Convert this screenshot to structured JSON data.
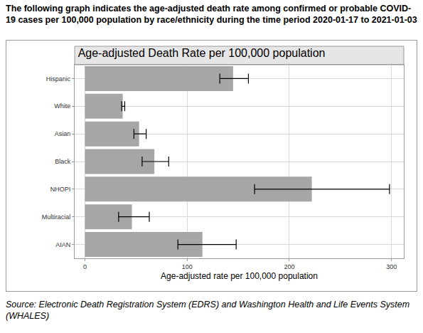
{
  "header": "The following graph indicates the age-adjusted death rate among confirmed or probable COVID-19 cases per 100,000 population by race/ethnicity during the time period 2020-01-17 to 2021-01-03",
  "chart_data": {
    "type": "bar",
    "orientation": "horizontal",
    "title": "Age-adjusted Death Rate per 100,000 population",
    "x_label": "Age-adjusted rate per 100,000 population",
    "categories": [
      "Hispanic",
      "White",
      "Asian",
      "Black",
      "NHOPI",
      "Multiracial",
      "AIAN"
    ],
    "values": [
      145,
      37,
      53,
      68,
      222,
      46,
      115
    ],
    "lower": [
      132,
      36,
      48,
      56,
      166,
      33,
      91
    ],
    "upper": [
      160,
      39,
      60,
      82,
      298,
      63,
      148
    ],
    "color": "#a6a6a6",
    "xlim": [
      -10,
      312
    ],
    "xticks": [
      0,
      100,
      200,
      300
    ],
    "grid": true
  },
  "source": "Source: Electronic Death Registration System (EDRS) and Washington Health and Life Events System (WHALES)"
}
